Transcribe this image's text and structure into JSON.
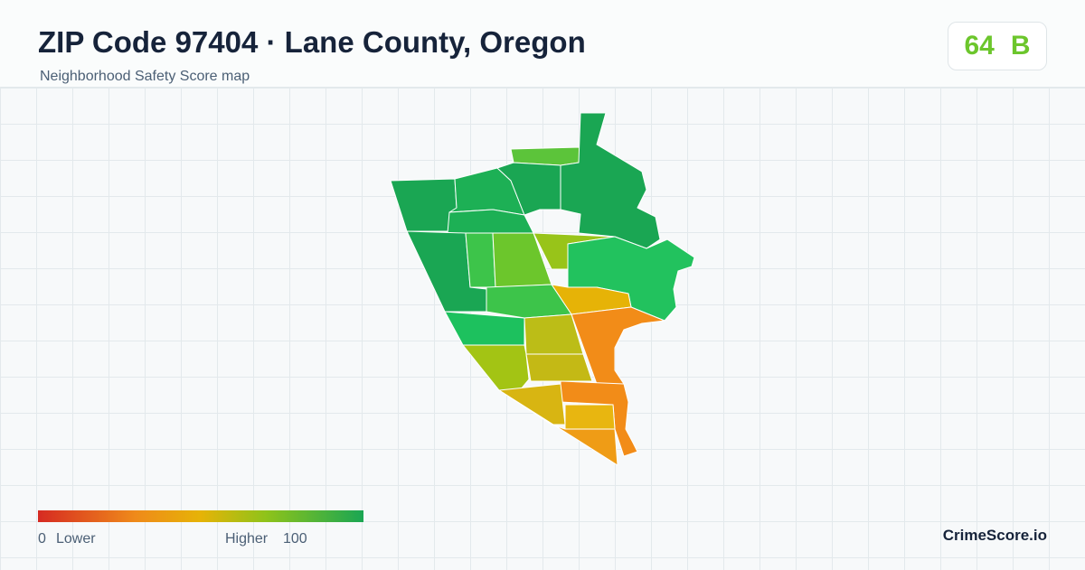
{
  "header": {
    "title": "ZIP Code 97404 · Lane County, Oregon",
    "subtitle": "Neighborhood Safety Score map"
  },
  "score": {
    "value": 64,
    "grade": "B"
  },
  "legend": {
    "min": 0,
    "min_label": "Lower",
    "max_label": "Higher",
    "max": 100
  },
  "brand": "CrimeScore.io"
}
